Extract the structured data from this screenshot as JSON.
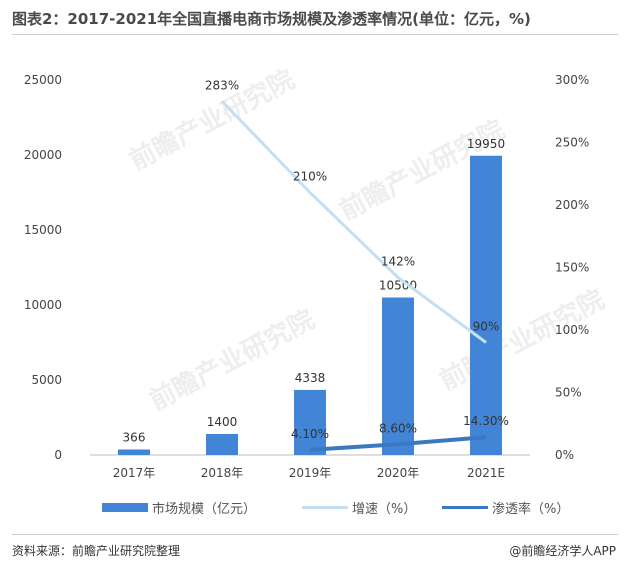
{
  "title": "图表2：2017-2021年全国直播电商市场规模及渗透率情况(单位：亿元，%)",
  "watermark": "前瞻产业研究院",
  "chart_data": {
    "type": "bar",
    "categories": [
      "2017年",
      "2018年",
      "2019年",
      "2020年",
      "2021E"
    ],
    "series": [
      {
        "name": "市场规模（亿元）",
        "type": "bar",
        "axis": "left",
        "color": "#4285d6",
        "values": [
          366,
          1400,
          4338,
          10500,
          19950
        ],
        "labels": [
          "366",
          "1400",
          "4338",
          "10500",
          "19950"
        ]
      },
      {
        "name": "增速（%）",
        "type": "line",
        "axis": "right",
        "color": "#c5dff2",
        "values": [
          null,
          283,
          210,
          142,
          90
        ],
        "labels": [
          null,
          "283%",
          "210%",
          "142%",
          "90%"
        ]
      },
      {
        "name": "渗透率（%）",
        "type": "line",
        "axis": "right",
        "color": "#3b78c2",
        "values": [
          null,
          null,
          4.1,
          8.6,
          14.3
        ],
        "labels": [
          null,
          null,
          "4.10%",
          "8.60%",
          "14.30%"
        ]
      }
    ],
    "y_left": {
      "min": 0,
      "max": 25000,
      "ticks": [
        "0",
        "5000",
        "10000",
        "15000",
        "20000",
        "25000"
      ]
    },
    "y_right": {
      "min": 0,
      "max": 300,
      "ticks": [
        "0%",
        "50%",
        "100%",
        "150%",
        "200%",
        "250%",
        "300%"
      ]
    },
    "grid": false,
    "legend_position": "bottom"
  },
  "source": "资料来源：前瞻产业研究院整理",
  "brand": "@前瞻经济学人APP"
}
